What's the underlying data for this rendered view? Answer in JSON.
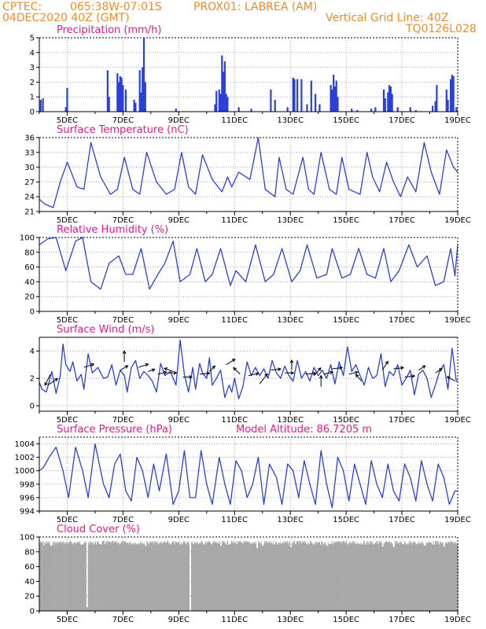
{
  "header": {
    "source": "CPTEC:",
    "coords": "065:38W-07:01S",
    "location": "PROX01: LABREA (AM)",
    "date": "04DEC2020 40Z (GMT)",
    "grid_note": "Vertical Grid Line: 40Z",
    "code": "TQ0126L028"
  },
  "model_altitude": "Model Altitude: 86.7205 m",
  "colors": {
    "header": "#f08a2c",
    "title": "#e8188c",
    "series": "#2a40d8",
    "cloud": "#a8a8a8"
  },
  "x_ticks": [
    "5DEC",
    "7DEC",
    "9DEC",
    "11DEC",
    "13DEC",
    "15DEC",
    "17DEC",
    "19DEC"
  ],
  "chart_data": [
    {
      "type": "bar",
      "title": "Precipitation (mm/h)",
      "ylim": [
        0,
        5
      ],
      "yticks": [
        0,
        1,
        2,
        3,
        4,
        5
      ],
      "x_range_days": [
        4.0,
        19.0
      ],
      "events": [
        [
          4.05,
          0.8
        ],
        [
          4.13,
          0.9
        ],
        [
          4.95,
          0.3
        ],
        [
          5.0,
          1.6
        ],
        [
          6.45,
          2.8
        ],
        [
          6.5,
          1.0
        ],
        [
          6.8,
          2.6
        ],
        [
          6.85,
          2.0
        ],
        [
          6.9,
          2.4
        ],
        [
          6.95,
          2.3
        ],
        [
          7.0,
          1.8
        ],
        [
          7.1,
          1.5
        ],
        [
          7.4,
          0.8
        ],
        [
          7.45,
          0.6
        ],
        [
          7.6,
          2.8
        ],
        [
          7.65,
          1.3
        ],
        [
          7.7,
          3.0
        ],
        [
          7.75,
          5.0
        ],
        [
          7.8,
          2.0
        ],
        [
          8.9,
          0.2
        ],
        [
          10.3,
          0.5
        ],
        [
          10.35,
          1.4
        ],
        [
          10.45,
          1.5
        ],
        [
          10.5,
          1.2
        ],
        [
          10.55,
          3.8
        ],
        [
          10.6,
          2.7
        ],
        [
          10.65,
          3.4
        ],
        [
          10.7,
          1.2
        ],
        [
          10.75,
          1.0
        ],
        [
          11.15,
          0.3
        ],
        [
          11.6,
          0.2
        ],
        [
          12.3,
          1.5
        ],
        [
          12.45,
          0.8
        ],
        [
          12.9,
          0.3
        ],
        [
          13.1,
          2.3
        ],
        [
          13.15,
          2.2
        ],
        [
          13.25,
          2.2
        ],
        [
          13.4,
          2.2
        ],
        [
          13.6,
          0.5
        ],
        [
          13.75,
          2.1
        ],
        [
          13.9,
          1.2
        ],
        [
          14.05,
          0.5
        ],
        [
          14.45,
          1.8
        ],
        [
          14.5,
          1.5
        ],
        [
          14.55,
          2.5
        ],
        [
          14.6,
          1.7
        ],
        [
          14.65,
          2.1
        ],
        [
          14.7,
          1.0
        ],
        [
          15.2,
          0.2
        ],
        [
          15.4,
          0.1
        ],
        [
          15.9,
          0.2
        ],
        [
          16.05,
          0.3
        ],
        [
          16.35,
          1.5
        ],
        [
          16.4,
          0.9
        ],
        [
          16.5,
          1.3
        ],
        [
          16.55,
          1.8
        ],
        [
          16.6,
          1.7
        ],
        [
          16.65,
          1.2
        ],
        [
          16.85,
          0.3
        ],
        [
          17.3,
          0.3
        ],
        [
          17.5,
          0.1
        ],
        [
          18.1,
          0.4
        ],
        [
          18.2,
          0.7
        ],
        [
          18.25,
          1.8
        ],
        [
          18.6,
          1.5
        ],
        [
          18.65,
          0.8
        ],
        [
          18.75,
          2.2
        ],
        [
          18.8,
          2.5
        ],
        [
          18.85,
          2.4
        ],
        [
          18.95,
          0.3
        ]
      ]
    },
    {
      "type": "line",
      "title": "Surface Temperature (nC)",
      "ylim": [
        21,
        36
      ],
      "yticks": [
        21,
        24,
        27,
        30,
        33,
        36
      ],
      "x_range_days": [
        4.0,
        19.0
      ],
      "x": [
        4.0,
        4.2,
        4.5,
        4.75,
        5.0,
        5.35,
        5.6,
        5.85,
        6.2,
        6.55,
        6.8,
        7.05,
        7.35,
        7.6,
        7.85,
        8.2,
        8.55,
        8.85,
        9.1,
        9.35,
        9.6,
        9.85,
        10.2,
        10.55,
        10.75,
        10.9,
        11.15,
        11.55,
        11.85,
        12.1,
        12.45,
        12.6,
        12.85,
        13.1,
        13.45,
        13.65,
        13.85,
        14.1,
        14.4,
        14.65,
        14.85,
        15.1,
        15.5,
        15.75,
        15.95,
        16.2,
        16.45,
        16.7,
        16.95,
        17.2,
        17.5,
        17.8,
        18.05,
        18.35,
        18.6,
        18.85,
        19.0
      ],
      "y": [
        23.5,
        22.5,
        21.8,
        27,
        31,
        26,
        25.5,
        35,
        28,
        24.5,
        25.5,
        32,
        25.5,
        24.5,
        33,
        27,
        24.5,
        25.5,
        33,
        26,
        24.5,
        32.5,
        27.5,
        25,
        28,
        26,
        29,
        27.5,
        36,
        25.5,
        24,
        32,
        25.5,
        24.5,
        32,
        25.5,
        24.5,
        33,
        25.5,
        24.5,
        32,
        25.5,
        24.5,
        33,
        28,
        25,
        31,
        27,
        24,
        28,
        25,
        35,
        29,
        24.5,
        33.5,
        30,
        29
      ]
    },
    {
      "type": "line",
      "title": "Relative Humidity (%)",
      "ylim": [
        0,
        100
      ],
      "yticks": [
        0,
        20,
        40,
        60,
        80,
        100
      ],
      "x_range_days": [
        4.0,
        19.0
      ],
      "x": [
        4.0,
        4.3,
        4.6,
        4.95,
        5.3,
        5.55,
        5.85,
        6.2,
        6.5,
        6.85,
        7.1,
        7.35,
        7.65,
        7.95,
        8.25,
        8.5,
        8.8,
        9.05,
        9.4,
        9.65,
        9.95,
        10.2,
        10.5,
        10.85,
        11.05,
        11.4,
        11.75,
        12.1,
        12.4,
        12.7,
        13.05,
        13.35,
        13.6,
        13.95,
        14.3,
        14.5,
        14.85,
        15.15,
        15.45,
        15.75,
        16.05,
        16.35,
        16.6,
        16.9,
        17.25,
        17.55,
        17.9,
        18.2,
        18.5,
        18.75,
        18.9,
        19.0
      ],
      "y": [
        90,
        98,
        100,
        55,
        95,
        100,
        40,
        30,
        65,
        75,
        50,
        50,
        85,
        30,
        50,
        65,
        95,
        40,
        50,
        85,
        40,
        50,
        85,
        35,
        55,
        40,
        90,
        40,
        50,
        85,
        40,
        55,
        90,
        45,
        50,
        85,
        45,
        50,
        85,
        50,
        45,
        85,
        40,
        55,
        90,
        60,
        75,
        35,
        40,
        85,
        48,
        90
      ]
    },
    {
      "type": "line",
      "title": "Surface Wind (m/s)",
      "ylim": [
        -0.4,
        5
      ],
      "yticks": [
        0,
        2,
        4
      ],
      "x_range_days": [
        4.0,
        19.0
      ],
      "x": [
        4.0,
        4.1,
        4.25,
        4.45,
        4.6,
        4.75,
        4.85,
        4.95,
        5.1,
        5.2,
        5.35,
        5.5,
        5.6,
        5.75,
        5.9,
        6.1,
        6.3,
        6.45,
        6.6,
        6.75,
        6.9,
        7.05,
        7.15,
        7.3,
        7.45,
        7.6,
        7.75,
        7.9,
        8.05,
        8.2,
        8.35,
        8.5,
        8.7,
        8.9,
        9.05,
        9.2,
        9.35,
        9.5,
        9.6,
        9.75,
        9.85,
        10.0,
        10.1,
        10.2,
        10.35,
        10.5,
        10.65,
        10.8,
        10.9,
        11.0,
        11.15,
        11.3,
        11.45,
        11.6,
        11.75,
        11.9,
        12.05,
        12.2,
        12.35,
        12.5,
        12.65,
        12.8,
        12.95,
        13.1,
        13.25,
        13.4,
        13.55,
        13.7,
        13.85,
        14.0,
        14.15,
        14.3,
        14.45,
        14.6,
        14.75,
        14.9,
        15.05,
        15.2,
        15.35,
        15.5,
        15.65,
        15.8,
        15.95,
        16.1,
        16.25,
        16.4,
        16.55,
        16.7,
        16.85,
        17.0,
        17.15,
        17.3,
        17.45,
        17.6,
        17.75,
        17.9,
        18.05,
        18.2,
        18.35,
        18.5,
        18.65,
        18.8,
        18.95,
        19.0
      ],
      "y": [
        1.7,
        1.2,
        1.0,
        2.5,
        0.9,
        2.2,
        4.5,
        3.0,
        2.5,
        3.2,
        1.8,
        2.3,
        1.2,
        3.8,
        2.4,
        2.8,
        2.0,
        2.1,
        3.0,
        1.5,
        2.6,
        2.2,
        1.0,
        2.8,
        3.3,
        2.0,
        2.5,
        2.2,
        1.8,
        1.0,
        3.1,
        2.2,
        2.5,
        1.5,
        4.8,
        2.3,
        1.0,
        2.8,
        1.2,
        3.1,
        2.4,
        2.0,
        3.5,
        1.5,
        2.0,
        2.6,
        0.6,
        1.5,
        1.0,
        2.0,
        0.5,
        1.4,
        3.2,
        2.2,
        2.8,
        2.2,
        2.7,
        2.0,
        3.3,
        2.4,
        2.0,
        2.9,
        2.2,
        1.8,
        3.3,
        2.0,
        2.5,
        1.8,
        2.8,
        2.2,
        2.6,
        2.0,
        3.0,
        1.6,
        3.2,
        2.2,
        4.3,
        2.5,
        3.0,
        2.2,
        1.5,
        2.8,
        2.0,
        2.2,
        3.8,
        1.4,
        2.5,
        2.2,
        3.0,
        1.5,
        2.0,
        2.6,
        0.8,
        2.3,
        2.6,
        2.0,
        0.6,
        1.5,
        2.5,
        3.0,
        1.2,
        4.2,
        1.8,
        1.8
      ]
    },
    {
      "type": "line",
      "title": "Surface Pressure (hPa)",
      "ylim": [
        994,
        1005
      ],
      "yticks": [
        994,
        996,
        998,
        1000,
        1002,
        1004
      ],
      "x_range_days": [
        4.0,
        19.0
      ],
      "x": [
        4.0,
        4.15,
        4.35,
        4.6,
        4.85,
        5.05,
        5.3,
        5.55,
        5.75,
        6.0,
        6.3,
        6.5,
        6.7,
        6.9,
        7.1,
        7.3,
        7.5,
        7.7,
        7.9,
        8.1,
        8.3,
        8.55,
        8.8,
        9.0,
        9.2,
        9.4,
        9.6,
        9.8,
        10.0,
        10.2,
        10.45,
        10.65,
        10.85,
        11.05,
        11.25,
        11.45,
        11.65,
        11.85,
        12.05,
        12.25,
        12.5,
        12.7,
        12.9,
        13.1,
        13.3,
        13.5,
        13.7,
        13.9,
        14.1,
        14.3,
        14.5,
        14.7,
        14.9,
        15.1,
        15.3,
        15.5,
        15.7,
        15.9,
        16.1,
        16.3,
        16.5,
        16.7,
        16.9,
        17.1,
        17.3,
        17.5,
        17.7,
        17.9,
        18.1,
        18.3,
        18.5,
        18.7,
        18.9,
        19.0
      ],
      "y": [
        1000,
        1000.5,
        1002,
        1003.5,
        1000,
        996,
        1003.5,
        1000,
        996,
        1004,
        998,
        996,
        1001,
        1002.5,
        997,
        995.5,
        1002,
        1000,
        996,
        1001,
        997,
        1002.5,
        995,
        997,
        1003,
        996,
        996,
        1003,
        998,
        995,
        1002,
        998,
        995,
        1001.5,
        1000,
        996,
        998,
        1002,
        995,
        1001,
        999,
        995,
        1001,
        1000,
        996,
        1001.5,
        998,
        995,
        1003,
        998,
        994.5,
        1002,
        1000,
        995.5,
        1001,
        998,
        995,
        1001.5,
        998,
        996,
        1001,
        997,
        995.5,
        1001,
        999,
        995.5,
        1001.5,
        998,
        995.5,
        1001,
        999,
        995,
        997,
        997
      ]
    },
    {
      "type": "area",
      "title": "Cloud Cover (%)",
      "ylim": [
        0,
        100
      ],
      "yticks": [
        0,
        20,
        40,
        60,
        80,
        100
      ],
      "x_range_days": [
        4.0,
        19.0
      ],
      "note": "Near-continuous grey fill ~90-97%; dips listed below",
      "baseline": 95,
      "dips": [
        [
          5.7,
          5
        ],
        [
          9.4,
          0
        ],
        [
          4.15,
          88
        ],
        [
          4.4,
          88
        ],
        [
          6.2,
          90
        ],
        [
          7.8,
          88
        ],
        [
          8.7,
          90
        ],
        [
          10.5,
          88
        ],
        [
          11.8,
          85
        ],
        [
          12.0,
          88
        ],
        [
          13.0,
          86
        ],
        [
          14.3,
          88
        ],
        [
          16.3,
          87
        ],
        [
          16.7,
          86
        ],
        [
          17.8,
          88
        ],
        [
          18.5,
          87
        ]
      ]
    }
  ]
}
